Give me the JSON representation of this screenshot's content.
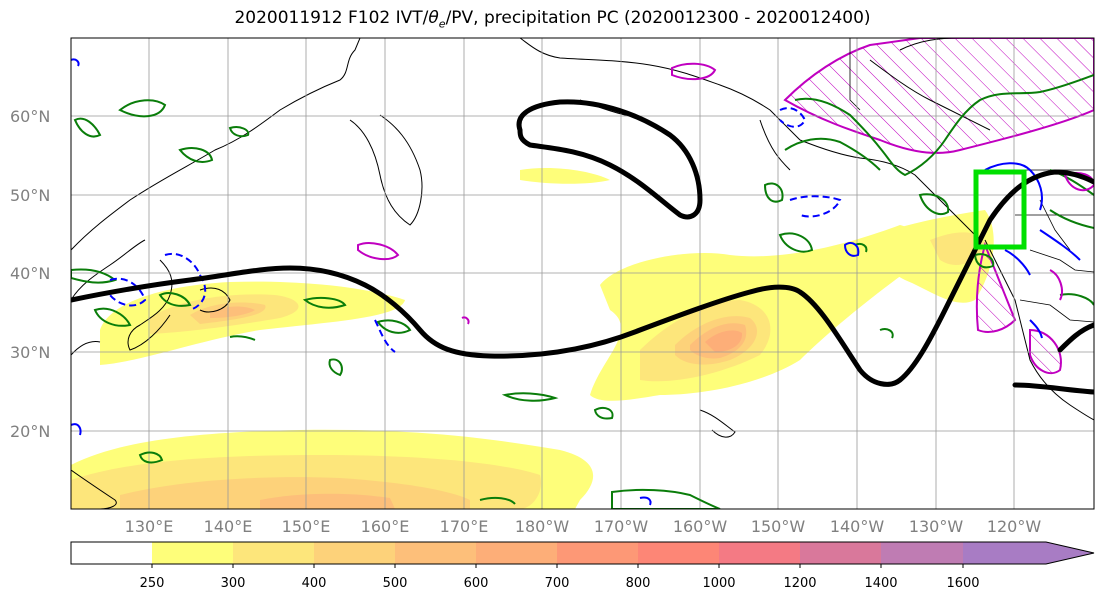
{
  "title_prefix": "2020011912 F102 IVT/",
  "title_symbol": "θ",
  "title_sub": "e",
  "title_suffix": "/PV, precipitation PC (2020012300 - 2020012400)",
  "lat_labels": [
    "60°N",
    "50°N",
    "40°N",
    "30°N",
    "20°N"
  ],
  "lon_labels": [
    "130°E",
    "140°E",
    "150°E",
    "160°E",
    "170°E",
    "180°W",
    "170°W",
    "160°W",
    "150°W",
    "140°W",
    "130°W",
    "120°W"
  ],
  "colorbar": {
    "levels": [
      "250",
      "300",
      "400",
      "500",
      "600",
      "700",
      "800",
      "1000",
      "1200",
      "1400",
      "1600"
    ],
    "colors": [
      "#ffffff",
      "#fefe7a",
      "#fde67b",
      "#fdd27a",
      "#fdbf7a",
      "#fdae78",
      "#fd9876",
      "#fd8676",
      "#f47a84",
      "#d9789b",
      "#bf7cb3",
      "#a87cc4"
    ]
  },
  "colors": {
    "contour_black": "#000000",
    "contour_green": "#0a7d0a",
    "contour_blue": "#0000ff",
    "contour_magenta": "#c000c0",
    "box_green": "#00e000",
    "grid": "#999999",
    "axis_label": "#808080"
  }
}
